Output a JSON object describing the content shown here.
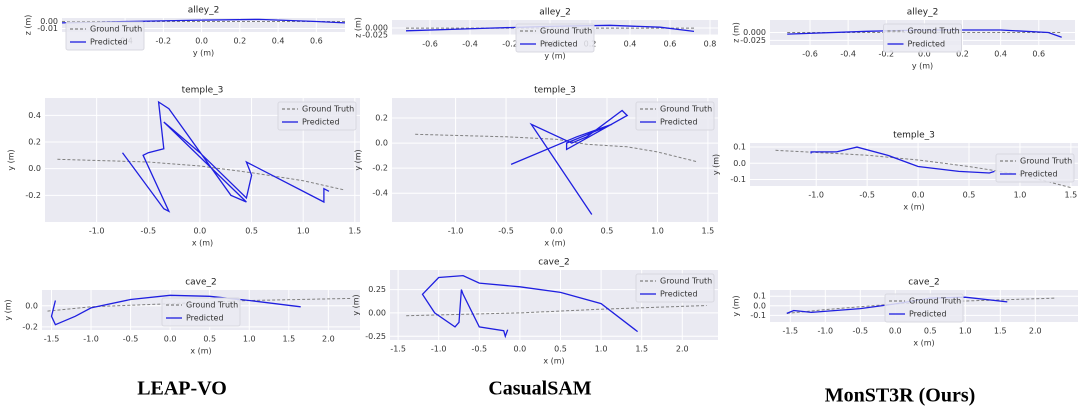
{
  "column_labels": [
    "LEAP-VO",
    "CasualSAM",
    "MonST3R (Ours)"
  ],
  "chart_data": [
    {
      "type": "line",
      "title": "alley_2",
      "xlabel": "y (m)",
      "ylabel": "z (m)",
      "grid": true,
      "legend": "lower left",
      "xlim": [
        -0.73,
        0.75
      ],
      "ylim": [
        -0.015,
        0.005
      ],
      "xticks": [
        -0.4,
        -0.2,
        {
          "value": 0,
          "label": "0.0"
        },
        0.2,
        0.4,
        0.6
      ],
      "yticks": [
        {
          "value": 0,
          "label": "0.00"
        },
        -0.01
      ],
      "series": [
        {
          "name": "Ground Truth",
          "color": "#808080",
          "linestyle": "dashed",
          "x": [
            -0.73,
            0,
            0.75
          ],
          "values": [
            0,
            0,
            0
          ]
        },
        {
          "name": "Predicted",
          "color": "#1f1fe0",
          "linestyle": "solid",
          "x": [
            -0.73,
            -0.4,
            0,
            0.3,
            0.6,
            0.75
          ],
          "values": [
            -0.002,
            0,
            0.002,
            0.003,
            0,
            -0.002
          ]
        }
      ]
    },
    {
      "type": "line",
      "title": "temple_3",
      "xlabel": "x (m)",
      "ylabel": "y (m)",
      "grid": true,
      "legend": "upper right",
      "xlim": [
        -1.5,
        1.55
      ],
      "ylim": [
        -0.4,
        0.53
      ],
      "xticks": [
        {
          "value": -1,
          "label": "-1.0"
        },
        -0.5,
        {
          "value": 0,
          "label": "0.0"
        },
        0.5,
        {
          "value": 1,
          "label": "1.0"
        },
        1.5
      ],
      "yticks": [
        0.4,
        0.2,
        {
          "value": 0,
          "label": "0.0"
        },
        -0.2
      ],
      "series": [
        {
          "name": "Ground Truth",
          "color": "#808080",
          "linestyle": "dashed",
          "x": [
            -1.38,
            -0.5,
            0,
            0.5,
            1.0,
            1.4
          ],
          "values": [
            0.07,
            0.05,
            0.02,
            -0.03,
            -0.09,
            -0.16
          ]
        },
        {
          "name": "Predicted",
          "color": "#1f1fe0",
          "linestyle": "solid",
          "x": [
            -0.75,
            -0.35,
            -0.3,
            -0.55,
            -0.5,
            -0.35,
            -0.4,
            -0.3,
            0.3,
            0.45,
            -0.35,
            0.0,
            0.45,
            0.5,
            0.45,
            1.2,
            1.2,
            1.25
          ],
          "values": [
            0.12,
            -0.3,
            -0.32,
            0.1,
            0.12,
            0.15,
            0.5,
            0.45,
            -0.2,
            -0.25,
            0.35,
            0.12,
            -0.22,
            -0.05,
            0.05,
            -0.25,
            -0.15,
            -0.17
          ]
        }
      ]
    },
    {
      "type": "line",
      "title": "cave_2",
      "xlabel": "x (m)",
      "ylabel": "y (m)",
      "grid": true,
      "legend": "lower center",
      "xlim": [
        -1.62,
        2.4
      ],
      "ylim": [
        -0.23,
        0.15
      ],
      "xticks": [
        -1.5,
        {
          "value": -1,
          "label": "-1.0"
        },
        -0.5,
        {
          "value": 0,
          "label": "0.0"
        },
        0.5,
        {
          "value": 1,
          "label": "1.0"
        },
        1.5,
        {
          "value": 2,
          "label": "2.0"
        }
      ],
      "yticks": [
        {
          "value": 0,
          "label": "0.0"
        },
        -0.2
      ],
      "series": [
        {
          "name": "Ground Truth",
          "color": "#808080",
          "linestyle": "dashed",
          "x": [
            -1.55,
            -1.0,
            0,
            1.0,
            2.3
          ],
          "values": [
            -0.05,
            -0.01,
            0.02,
            0.05,
            0.07
          ]
        },
        {
          "name": "Predicted",
          "color": "#1f1fe0",
          "linestyle": "solid",
          "x": [
            -1.45,
            -1.5,
            -1.45,
            -1.2,
            -1.0,
            -0.5,
            0,
            0.5,
            1.0,
            1.65
          ],
          "values": [
            0.05,
            -0.1,
            -0.18,
            -0.1,
            -0.02,
            0.06,
            0.1,
            0.09,
            0.05,
            -0.01
          ]
        }
      ]
    },
    {
      "type": "line",
      "title": "alley_2",
      "xlabel": "y (m)",
      "ylabel": "z (m)",
      "grid": true,
      "legend": "lower center",
      "xlim": [
        -0.79,
        0.84
      ],
      "ylim": [
        -0.025,
        0.029
      ],
      "xticks": [
        -0.6,
        -0.4,
        -0.2,
        {
          "value": 0,
          "label": "0.0"
        },
        0.2,
        0.4,
        0.6,
        0.8
      ],
      "yticks": [
        {
          "value": 0,
          "label": "0.000"
        },
        -0.025
      ],
      "series": [
        {
          "name": "Ground Truth",
          "color": "#808080",
          "linestyle": "dashed",
          "x": [
            -0.72,
            0,
            0.72
          ],
          "values": [
            0,
            0,
            0
          ]
        },
        {
          "name": "Predicted",
          "color": "#1f1fe0",
          "linestyle": "solid",
          "x": [
            -0.72,
            -0.3,
            0,
            0.3,
            0.55,
            0.72
          ],
          "values": [
            -0.01,
            0,
            0.006,
            0.01,
            0.003,
            -0.012
          ]
        }
      ]
    },
    {
      "type": "line",
      "title": "temple_3",
      "xlabel": "x (m)",
      "ylabel": "y (m)",
      "grid": true,
      "legend": "upper right",
      "xlim": [
        -1.63,
        1.6
      ],
      "ylim": [
        -0.63,
        0.36
      ],
      "xticks": [
        {
          "value": -1,
          "label": "-1.0"
        },
        -0.5,
        {
          "value": 0,
          "label": "0.0"
        },
        0.5,
        {
          "value": 1,
          "label": "1.0"
        },
        1.5
      ],
      "yticks": [
        0.2,
        {
          "value": 0,
          "label": "0.0"
        },
        -0.2,
        -0.4
      ],
      "series": [
        {
          "name": "Ground Truth",
          "color": "#808080",
          "linestyle": "dashed",
          "x": [
            -1.4,
            -0.5,
            0,
            0.3,
            0.7,
            1.0,
            1.4
          ],
          "values": [
            0.07,
            0.05,
            0.03,
            -0.01,
            -0.03,
            -0.07,
            -0.15
          ]
        },
        {
          "name": "Predicted",
          "color": "#1f1fe0",
          "linestyle": "solid",
          "x": [
            0.35,
            -0.25,
            0.15,
            0.3,
            0.65,
            0.7,
            0.1,
            0.1,
            0.55,
            0.2,
            -0.45
          ],
          "values": [
            -0.57,
            0.15,
            0,
            0.05,
            0.26,
            0.22,
            -0.05,
            0,
            0.15,
            0.05,
            -0.17
          ]
        }
      ]
    },
    {
      "type": "line",
      "title": "cave_2",
      "xlabel": "x (m)",
      "ylabel": "y (m)",
      "grid": true,
      "legend": "upper right",
      "xlim": [
        -1.6,
        2.44
      ],
      "ylim": [
        -0.29,
        0.46
      ],
      "xticks": [
        -1.5,
        {
          "value": -1,
          "label": "-1.0"
        },
        -0.5,
        {
          "value": 0,
          "label": "0.0"
        },
        0.5,
        {
          "value": 1,
          "label": "1.0"
        },
        1.5,
        {
          "value": 2,
          "label": "2.0"
        }
      ],
      "yticks": [
        0.25,
        {
          "value": 0,
          "label": "0.00"
        },
        -0.25
      ],
      "series": [
        {
          "name": "Ground Truth",
          "color": "#808080",
          "linestyle": "dashed",
          "x": [
            -1.4,
            0,
            1.0,
            2.3
          ],
          "values": [
            -0.03,
            0,
            0.04,
            0.08
          ]
        },
        {
          "name": "Predicted",
          "color": "#1f1fe0",
          "linestyle": "solid",
          "x": [
            -0.15,
            -0.18,
            -0.2,
            -0.5,
            -0.7,
            -0.72,
            -0.75,
            -0.8,
            -1.05,
            -1.2,
            -1.0,
            -0.7,
            -0.5,
            0,
            0.5,
            1.0,
            1.45
          ],
          "values": [
            -0.18,
            -0.25,
            -0.19,
            -0.15,
            0.2,
            0.25,
            -0.1,
            -0.15,
            0,
            0.2,
            0.38,
            0.4,
            0.32,
            0.28,
            0.22,
            0.1,
            -0.2
          ]
        }
      ]
    },
    {
      "type": "line",
      "title": "alley_2",
      "xlabel": "y (m)",
      "ylabel": "z (m)",
      "grid": true,
      "legend": "lower center",
      "xlim": [
        -0.81,
        0.79
      ],
      "ylim": [
        -0.04,
        0.04
      ],
      "xticks": [
        -0.6,
        -0.4,
        -0.2,
        {
          "value": 0,
          "label": "0.0"
        },
        0.2,
        0.4,
        0.6
      ],
      "yticks": [
        {
          "value": 0,
          "label": "0.000"
        },
        -0.025
      ],
      "series": [
        {
          "name": "Ground Truth",
          "color": "#808080",
          "linestyle": "dashed",
          "x": [
            -0.72,
            0,
            0.72
          ],
          "values": [
            0,
            0,
            0
          ]
        },
        {
          "name": "Predicted",
          "color": "#1f1fe0",
          "linestyle": "solid",
          "x": [
            -0.72,
            -0.3,
            0,
            0.4,
            0.65,
            0.72
          ],
          "values": [
            -0.005,
            0.004,
            0.008,
            0.008,
            0,
            -0.015
          ]
        }
      ]
    },
    {
      "type": "line",
      "title": "temple_3",
      "xlabel": "x (m)",
      "ylabel": "y (m)",
      "grid": true,
      "legend": "lower right",
      "xlim": [
        -1.65,
        1.57
      ],
      "ylim": [
        -0.14,
        0.125
      ],
      "xticks": [
        {
          "value": -1,
          "label": "-1.0"
        },
        -0.5,
        {
          "value": 0,
          "label": "0.0"
        },
        0.5,
        {
          "value": 1,
          "label": "1.0"
        },
        1.5
      ],
      "yticks": [
        0.1,
        {
          "value": 0,
          "label": "0.0"
        },
        -0.1
      ],
      "series": [
        {
          "name": "Ground Truth",
          "color": "#808080",
          "linestyle": "dashed",
          "x": [
            -1.4,
            -0.5,
            0,
            0.5,
            1.0,
            1.5
          ],
          "values": [
            0.08,
            0.05,
            0.02,
            -0.02,
            -0.07,
            -0.15
          ]
        },
        {
          "name": "Predicted",
          "color": "#1f1fe0",
          "linestyle": "solid",
          "x": [
            -1.05,
            -1.05,
            -0.8,
            -0.6,
            -0.3,
            0,
            0.4,
            0.7,
            0.75
          ],
          "values": [
            0.06,
            0.07,
            0.07,
            0.1,
            0.05,
            -0.02,
            -0.05,
            -0.06,
            -0.05
          ]
        }
      ]
    },
    {
      "type": "line",
      "title": "cave_2",
      "xlabel": "x (m)",
      "ylabel": "y (m)",
      "grid": true,
      "legend": "lower center",
      "xlim": [
        -1.79,
        2.61
      ],
      "ylim": [
        -0.17,
        0.165
      ],
      "xticks": [
        -1.5,
        {
          "value": -1,
          "label": "-1.0"
        },
        -0.5,
        {
          "value": 0,
          "label": "0.0"
        },
        0.5,
        {
          "value": 1,
          "label": "1.0"
        },
        1.5,
        {
          "value": 2,
          "label": "2.0"
        }
      ],
      "yticks": [
        0.1,
        {
          "value": 0,
          "label": "0.0"
        },
        -0.1
      ],
      "series": [
        {
          "name": "Ground Truth",
          "color": "#808080",
          "linestyle": "dashed",
          "x": [
            -1.55,
            -1.0,
            0,
            1.0,
            2.3
          ],
          "values": [
            -0.08,
            -0.04,
            0.02,
            0.05,
            0.08
          ]
        },
        {
          "name": "Predicted",
          "color": "#1f1fe0",
          "linestyle": "solid",
          "x": [
            -1.55,
            -1.45,
            -1.2,
            -0.5,
            0,
            0.5,
            1.0,
            1.6
          ],
          "values": [
            -0.08,
            -0.05,
            -0.07,
            -0.03,
            0.02,
            0.08,
            0.09,
            0.04
          ]
        }
      ]
    }
  ]
}
